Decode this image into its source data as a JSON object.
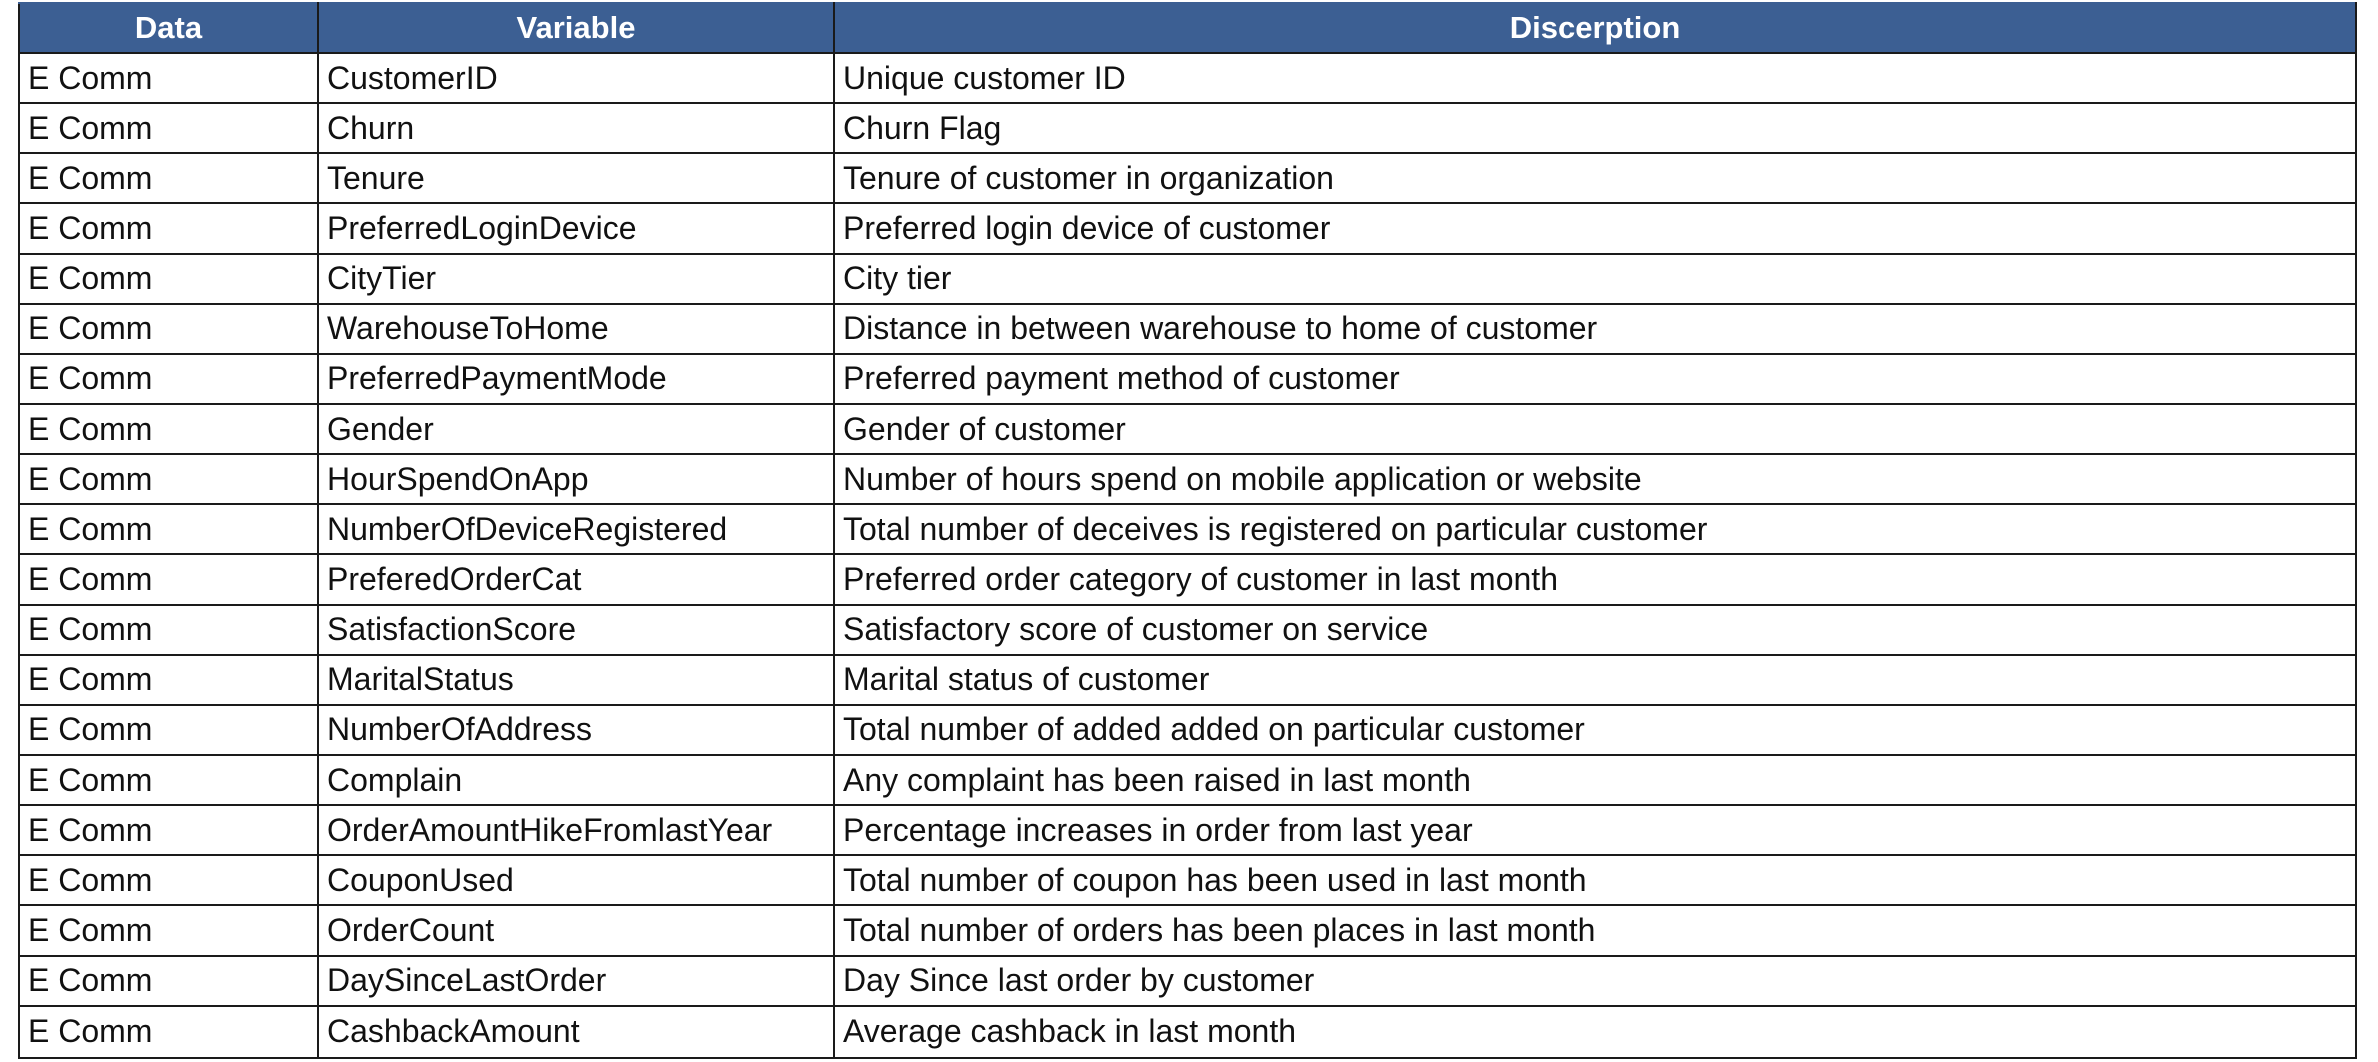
{
  "table": {
    "headers": [
      "Data",
      "Variable",
      "Discerption"
    ],
    "rows": [
      [
        "E Comm",
        "CustomerID",
        "Unique customer ID"
      ],
      [
        "E Comm",
        "Churn",
        "Churn Flag"
      ],
      [
        "E Comm",
        "Tenure",
        "Tenure of customer in organization"
      ],
      [
        "E Comm",
        "PreferredLoginDevice",
        "Preferred login device of customer"
      ],
      [
        "E Comm",
        "CityTier",
        "City tier"
      ],
      [
        "E Comm",
        "WarehouseToHome",
        "Distance in between warehouse to home of customer"
      ],
      [
        "E Comm",
        "PreferredPaymentMode",
        "Preferred payment method of customer"
      ],
      [
        "E Comm",
        "Gender",
        "Gender of customer"
      ],
      [
        "E Comm",
        "HourSpendOnApp",
        "Number of hours spend on mobile application or website"
      ],
      [
        "E Comm",
        "NumberOfDeviceRegistered",
        "Total number of deceives is registered on particular customer"
      ],
      [
        "E Comm",
        "PreferedOrderCat",
        "Preferred order category of customer in last month"
      ],
      [
        "E Comm",
        "SatisfactionScore",
        "Satisfactory score of customer on service"
      ],
      [
        "E Comm",
        "MaritalStatus",
        "Marital status of customer"
      ],
      [
        "E Comm",
        "NumberOfAddress",
        "Total number of added added on particular customer"
      ],
      [
        "E Comm",
        "Complain",
        "Any complaint has been raised in last month"
      ],
      [
        "E Comm",
        "OrderAmountHikeFromlastYear",
        "Percentage increases in order from last year"
      ],
      [
        "E Comm",
        "CouponUsed",
        "Total number of coupon has been used in last month"
      ],
      [
        "E Comm",
        "OrderCount",
        "Total number of orders has been places in last month"
      ],
      [
        "E Comm",
        "DaySinceLastOrder",
        "Day Since last order by customer"
      ],
      [
        "E Comm",
        "CashbackAmount",
        "Average cashback in last month"
      ]
    ]
  },
  "colors": {
    "header_background": "#3c5f93",
    "header_text": "#ffffff",
    "grid_lines": "#1a1a1a",
    "cell_text": "#111111"
  }
}
